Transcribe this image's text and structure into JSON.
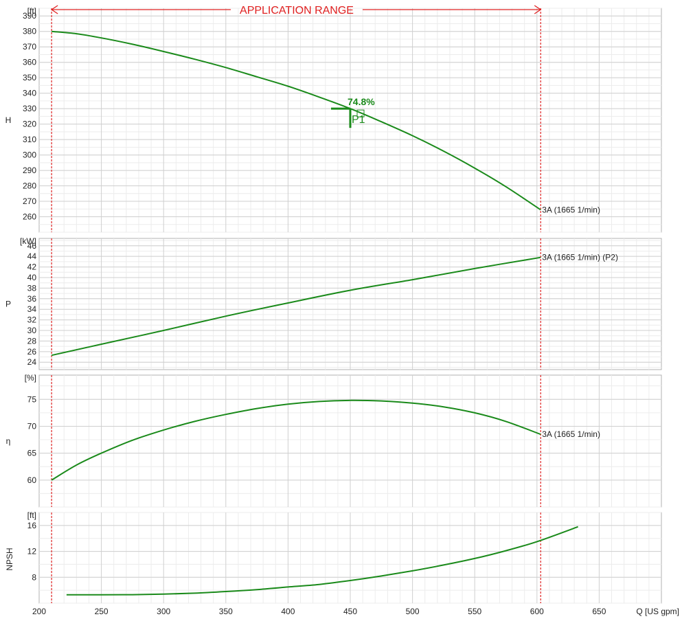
{
  "chart_data": [
    {
      "type": "line",
      "id": "head",
      "ylabel": "H",
      "unit": "[ft]",
      "ylim": [
        250,
        395
      ],
      "yticks": [
        260,
        270,
        280,
        290,
        300,
        310,
        320,
        330,
        340,
        350,
        360,
        370,
        380,
        390
      ],
      "grid": true,
      "series": [
        {
          "name": "3A (1665 1/min)",
          "color": "#1a8a1a",
          "points": [
            [
              210,
              380
            ],
            [
              230,
              378.5
            ],
            [
              250,
              375.8
            ],
            [
              275,
              371.7
            ],
            [
              300,
              367
            ],
            [
              325,
              362
            ],
            [
              350,
              356.6
            ],
            [
              375,
              350.6
            ],
            [
              400,
              344.5
            ],
            [
              425,
              337.5
            ],
            [
              450,
              330
            ],
            [
              475,
              321.5
            ],
            [
              500,
              312.5
            ],
            [
              525,
              302.5
            ],
            [
              550,
              291.5
            ],
            [
              575,
              279.5
            ],
            [
              603,
              264.5
            ]
          ]
        }
      ]
    },
    {
      "type": "line",
      "id": "power",
      "ylabel": "P",
      "unit": "[kW]",
      "ylim": [
        22.6,
        47.4
      ],
      "yticks": [
        24,
        26,
        28,
        30,
        32,
        34,
        36,
        38,
        40,
        42,
        44,
        46
      ],
      "grid": true,
      "series": [
        {
          "name": "3A (1665 1/min) (P2)",
          "color": "#1a8a1a",
          "points": [
            [
              210,
              25.3
            ],
            [
              250,
              27.4
            ],
            [
              300,
              30
            ],
            [
              350,
              32.7
            ],
            [
              400,
              35.2
            ],
            [
              450,
              37.6
            ],
            [
              500,
              39.6
            ],
            [
              550,
              41.7
            ],
            [
              603,
              43.8
            ]
          ]
        }
      ]
    },
    {
      "type": "line",
      "id": "efficiency",
      "ylabel": "η",
      "unit": "[%]",
      "ylim": [
        55,
        79.5
      ],
      "yticks": [
        60,
        65,
        70,
        75
      ],
      "grid": true,
      "series": [
        {
          "name": "3A (1665 1/min)",
          "color": "#1a8a1a",
          "points": [
            [
              210,
              60
            ],
            [
              230,
              62.8
            ],
            [
              250,
              65
            ],
            [
              275,
              67.4
            ],
            [
              300,
              69.3
            ],
            [
              325,
              70.9
            ],
            [
              350,
              72.2
            ],
            [
              375,
              73.3
            ],
            [
              400,
              74.1
            ],
            [
              425,
              74.6
            ],
            [
              450,
              74.8
            ],
            [
              475,
              74.7
            ],
            [
              500,
              74.3
            ],
            [
              525,
              73.6
            ],
            [
              550,
              72.5
            ],
            [
              575,
              70.9
            ],
            [
              603,
              68.5
            ]
          ]
        }
      ]
    },
    {
      "type": "line",
      "id": "npsh",
      "ylabel": "NPSH",
      "unit": "[ft]",
      "ylim": [
        4,
        18
      ],
      "yticks": [
        8,
        12,
        16
      ],
      "grid": true,
      "series": [
        {
          "color": "#1a8a1a",
          "points": [
            [
              222,
              5.3
            ],
            [
              250,
              5.3
            ],
            [
              275,
              5.32
            ],
            [
              300,
              5.4
            ],
            [
              325,
              5.55
            ],
            [
              350,
              5.8
            ],
            [
              375,
              6.1
            ],
            [
              400,
              6.5
            ],
            [
              425,
              6.9
            ],
            [
              450,
              7.5
            ],
            [
              475,
              8.2
            ],
            [
              500,
              9.0
            ],
            [
              525,
              9.9
            ],
            [
              550,
              10.9
            ],
            [
              575,
              12.1
            ],
            [
              600,
              13.5
            ],
            [
              633,
              15.8
            ]
          ]
        }
      ]
    }
  ],
  "x_axis": {
    "label": "Q [US gpm]",
    "xlim": [
      200,
      700
    ],
    "ticks": [
      200,
      250,
      300,
      350,
      400,
      450,
      500,
      550,
      600,
      650
    ]
  },
  "application_range": {
    "label": "APPLICATION RANGE",
    "from": 210,
    "to": 603,
    "color": "#e02020"
  },
  "operating_point": {
    "name": "P1",
    "efficiency_label": "74.8%",
    "q": 450,
    "h": 330,
    "color": "#1a8a1a"
  }
}
